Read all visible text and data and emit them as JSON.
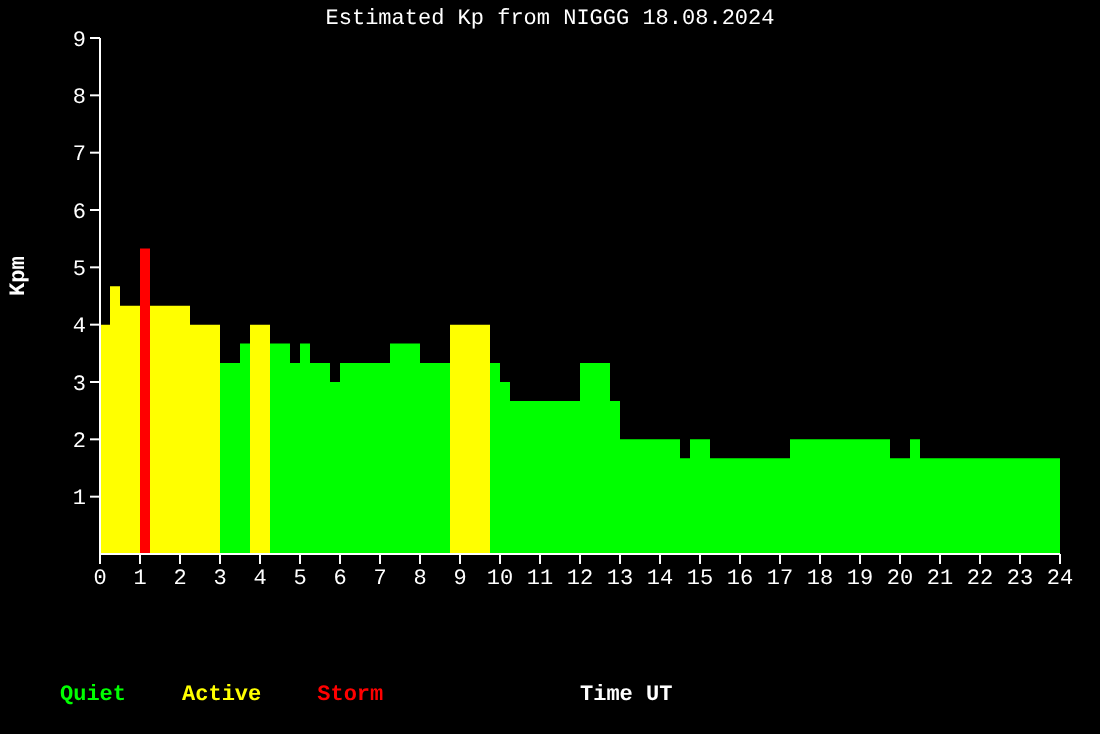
{
  "chart_data": {
    "type": "histogram",
    "title": "Estimated Kp from NIGGG 18.08.2024",
    "xlabel": "Time UT",
    "ylabel": "Kpm",
    "bins": [
      0,
      0.25,
      0.5,
      0.75,
      1,
      1.25,
      1.5,
      1.75,
      2,
      2.25,
      2.5,
      2.75,
      3,
      3.25,
      3.5,
      3.75,
      4,
      4.25,
      4.5,
      4.75,
      5,
      5.25,
      5.5,
      5.75,
      6,
      6.25,
      6.5,
      6.75,
      7,
      7.25,
      7.5,
      7.75,
      8,
      8.25,
      8.5,
      8.75,
      9,
      9.25,
      9.5,
      9.75,
      10,
      10.25,
      10.5,
      10.75,
      11,
      11.25,
      11.5,
      11.75,
      12,
      12.25,
      12.5,
      12.75,
      13,
      13.25,
      13.5,
      13.75,
      14,
      14.25,
      14.5,
      14.75,
      15,
      15.25,
      15.5,
      15.75,
      16,
      16.25,
      16.5,
      16.75,
      17,
      17.25,
      17.5,
      17.75,
      18,
      18.25,
      18.5,
      18.75,
      19,
      19.25,
      19.5,
      19.75,
      20,
      20.25,
      20.5,
      20.75,
      21,
      21.25,
      21.5,
      21.75,
      22,
      22.25,
      22.5,
      22.75,
      23,
      23.25,
      23.5,
      23.75,
      24
    ],
    "series": [
      {
        "name": "Quiet",
        "color": "#00ff00",
        "values": [
          null,
          null,
          null,
          null,
          null,
          null,
          null,
          null,
          null,
          null,
          null,
          null,
          3.33,
          3.33,
          3.67,
          null,
          null,
          3.67,
          3.67,
          3.33,
          3.67,
          3.33,
          3.33,
          3,
          3.33,
          3.33,
          3.33,
          3.33,
          3.33,
          3.67,
          3.67,
          3.67,
          3.33,
          3.33,
          3.33,
          null,
          null,
          null,
          null,
          3.33,
          3,
          2.67,
          2.67,
          2.67,
          2.67,
          2.67,
          2.67,
          2.67,
          3.33,
          3.33,
          3.33,
          2.67,
          2,
          2,
          2,
          2,
          2,
          2,
          1.67,
          2,
          2,
          1.67,
          1.67,
          1.67,
          1.67,
          1.67,
          1.67,
          1.67,
          1.67,
          2,
          2,
          2,
          2,
          2,
          2,
          2,
          2,
          2,
          2,
          1.67,
          1.67,
          2,
          1.67,
          1.67,
          1.67,
          1.67,
          1.67,
          1.67,
          1.67,
          1.67,
          1.67,
          1.67,
          1.67,
          1.67,
          1.67,
          1.67
        ]
      },
      {
        "name": "Active",
        "color": "#ffff00",
        "values": [
          4,
          4.67,
          4.33,
          4.33,
          null,
          4.33,
          4.33,
          4.33,
          4.33,
          4,
          4,
          4,
          null,
          null,
          null,
          4,
          4,
          null,
          null,
          null,
          null,
          null,
          null,
          null,
          null,
          null,
          null,
          null,
          null,
          null,
          null,
          null,
          null,
          null,
          null,
          4,
          4,
          4,
          4,
          null,
          null,
          null,
          null,
          null,
          null,
          null,
          null,
          null,
          null,
          null,
          null,
          null,
          null,
          null,
          null,
          null,
          null,
          null,
          null,
          null,
          null,
          null,
          null,
          null,
          null,
          null,
          null,
          null,
          null,
          null,
          null,
          null,
          null,
          null,
          null,
          null,
          null,
          null,
          null,
          null,
          null,
          null,
          null,
          null,
          null,
          null,
          null,
          null,
          null,
          null,
          null,
          null,
          null,
          null,
          null,
          null
        ]
      },
      {
        "name": "Storm",
        "color": "#ff0000",
        "values": [
          null,
          null,
          null,
          null,
          5.33,
          null,
          null,
          null,
          null,
          null,
          null,
          null,
          null,
          null,
          null,
          null,
          null,
          null,
          null,
          null,
          null,
          null,
          null,
          null,
          null,
          null,
          null,
          null,
          null,
          null,
          null,
          null,
          null,
          null,
          null,
          null,
          null,
          null,
          null,
          null,
          null,
          null,
          null,
          null,
          null,
          null,
          null,
          null,
          null,
          null,
          null,
          null,
          null,
          null,
          null,
          null,
          null,
          null,
          null,
          null,
          null,
          null,
          null,
          null,
          null,
          null,
          null,
          null,
          null,
          null,
          null,
          null,
          null,
          null,
          null,
          null,
          null,
          null,
          null,
          null,
          null,
          null,
          null,
          null,
          null,
          null,
          null,
          null,
          null,
          null,
          null,
          null,
          null,
          null,
          null,
          null
        ]
      }
    ],
    "xlim": [
      0,
      24
    ],
    "xticks": [
      0,
      1,
      2,
      3,
      4,
      5,
      6,
      7,
      8,
      9,
      10,
      11,
      12,
      13,
      14,
      15,
      16,
      17,
      18,
      19,
      20,
      21,
      22,
      23,
      24
    ],
    "ylim": [
      0,
      9
    ],
    "yticks": [
      1,
      2,
      3,
      4,
      5,
      6,
      7,
      8,
      9
    ],
    "legend": "bottom left"
  }
}
